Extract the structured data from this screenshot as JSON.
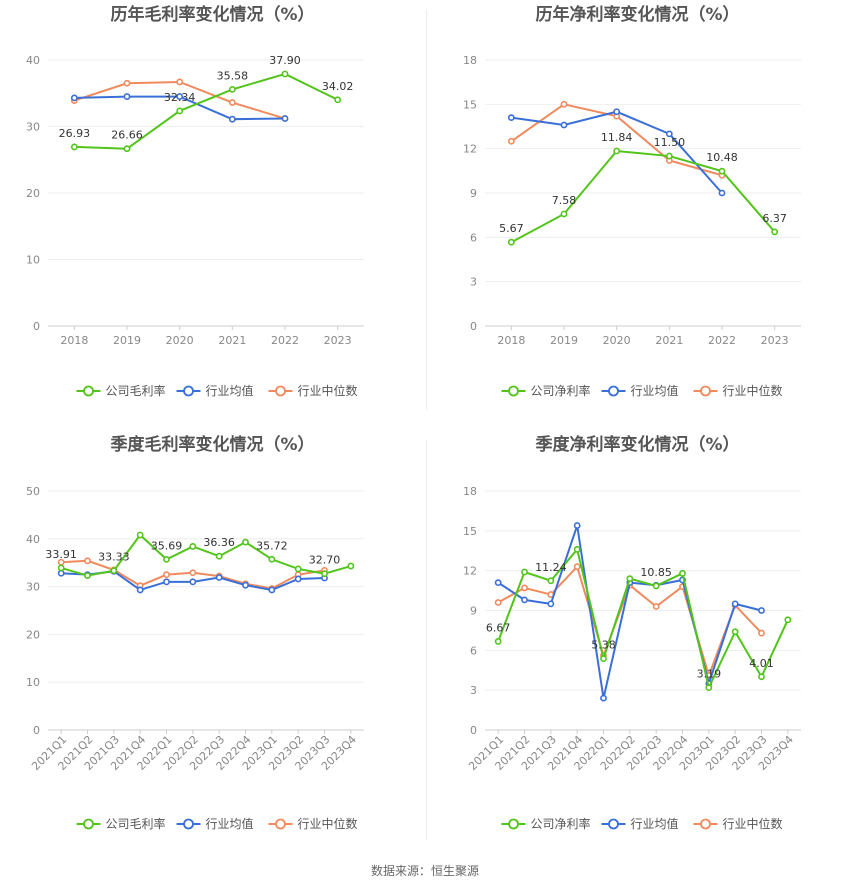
{
  "source": "数据来源：恒生聚源",
  "colors": {
    "company": "#52c41a",
    "avg": "#3a6fd8",
    "median": "#f08a5d"
  },
  "chart_data": [
    {
      "type": "line",
      "title": "历年毛利率变化情况（%）",
      "categories": [
        "2018",
        "2019",
        "2020",
        "2021",
        "2022",
        "2023"
      ],
      "ylim": [
        0,
        40
      ],
      "yticks": [
        0,
        10,
        20,
        30,
        40
      ],
      "series": [
        {
          "name": "公司毛利率",
          "values": [
            26.93,
            26.66,
            32.34,
            35.58,
            37.9,
            34.02
          ]
        },
        {
          "name": "行业均值",
          "values": [
            34.3,
            34.5,
            34.5,
            31.1,
            31.2,
            null
          ]
        },
        {
          "name": "行业中位数",
          "values": [
            33.9,
            36.5,
            36.7,
            33.6,
            31.2,
            null
          ]
        }
      ],
      "labels": [
        "26.93",
        "26.66",
        "32.34",
        "35.58",
        "37.90",
        "34.02"
      ]
    },
    {
      "type": "line",
      "title": "历年净利率变化情况（%）",
      "categories": [
        "2018",
        "2019",
        "2020",
        "2021",
        "2022",
        "2023"
      ],
      "ylim": [
        0,
        18
      ],
      "yticks": [
        0,
        3,
        6,
        9,
        12,
        15,
        18
      ],
      "series": [
        {
          "name": "公司净利率",
          "values": [
            5.67,
            7.58,
            11.84,
            11.5,
            10.48,
            6.37
          ]
        },
        {
          "name": "行业均值",
          "values": [
            14.1,
            13.6,
            14.5,
            13.0,
            9.0,
            null
          ]
        },
        {
          "name": "行业中位数",
          "values": [
            12.5,
            15.0,
            14.2,
            11.2,
            10.2,
            null
          ]
        }
      ],
      "labels": [
        "5.67",
        "7.58",
        "11.84",
        "11.50",
        "10.48",
        "6.37"
      ]
    },
    {
      "type": "line",
      "title": "季度毛利率变化情况（%）",
      "categories": [
        "2021Q1",
        "2021Q2",
        "2021Q3",
        "2021Q4",
        "2022Q1",
        "2022Q2",
        "2022Q3",
        "2022Q4",
        "2023Q1",
        "2023Q2",
        "2023Q3",
        "2023Q4"
      ],
      "ylim": [
        0,
        50
      ],
      "yticks": [
        0,
        10,
        20,
        30,
        40,
        50
      ],
      "series": [
        {
          "name": "公司毛利率",
          "values": [
            33.91,
            32.3,
            33.33,
            40.8,
            35.69,
            38.4,
            36.36,
            39.3,
            35.72,
            33.7,
            32.7,
            34.3
          ]
        },
        {
          "name": "行业均值",
          "values": [
            32.8,
            32.5,
            33.2,
            29.3,
            31.0,
            31.0,
            31.9,
            30.3,
            29.3,
            31.6,
            31.8,
            null
          ]
        },
        {
          "name": "行业中位数",
          "values": [
            35.1,
            35.4,
            33.5,
            30.2,
            32.5,
            32.9,
            32.2,
            30.6,
            29.6,
            32.5,
            33.4,
            null
          ]
        }
      ],
      "labels": [
        "33.91",
        "",
        "33.33",
        "",
        "35.69",
        "",
        "36.36",
        "",
        "35.72",
        "",
        "32.70",
        ""
      ]
    },
    {
      "type": "line",
      "title": "季度净利率变化情况（%）",
      "categories": [
        "2021Q1",
        "2021Q2",
        "2021Q3",
        "2021Q4",
        "2022Q1",
        "2022Q2",
        "2022Q3",
        "2022Q4",
        "2023Q1",
        "2023Q2",
        "2023Q3",
        "2023Q4"
      ],
      "ylim": [
        0,
        18
      ],
      "yticks": [
        0,
        3,
        6,
        9,
        12,
        15,
        18
      ],
      "series": [
        {
          "name": "公司净利率",
          "values": [
            6.67,
            11.9,
            11.24,
            13.6,
            5.38,
            11.4,
            10.85,
            11.8,
            3.19,
            7.4,
            4.01,
            8.3
          ]
        },
        {
          "name": "行业均值",
          "values": [
            11.1,
            9.8,
            9.5,
            15.4,
            2.4,
            11.1,
            10.9,
            11.3,
            3.5,
            9.5,
            9.0,
            null
          ]
        },
        {
          "name": "行业中位数",
          "values": [
            9.6,
            10.7,
            10.2,
            12.3,
            5.6,
            10.9,
            9.3,
            10.8,
            4.1,
            9.4,
            7.3,
            null
          ]
        }
      ],
      "labels": [
        "6.67",
        "",
        "11.24",
        "",
        "5.38",
        "",
        "10.85",
        "",
        "3.19",
        "",
        "4.01",
        ""
      ]
    }
  ]
}
